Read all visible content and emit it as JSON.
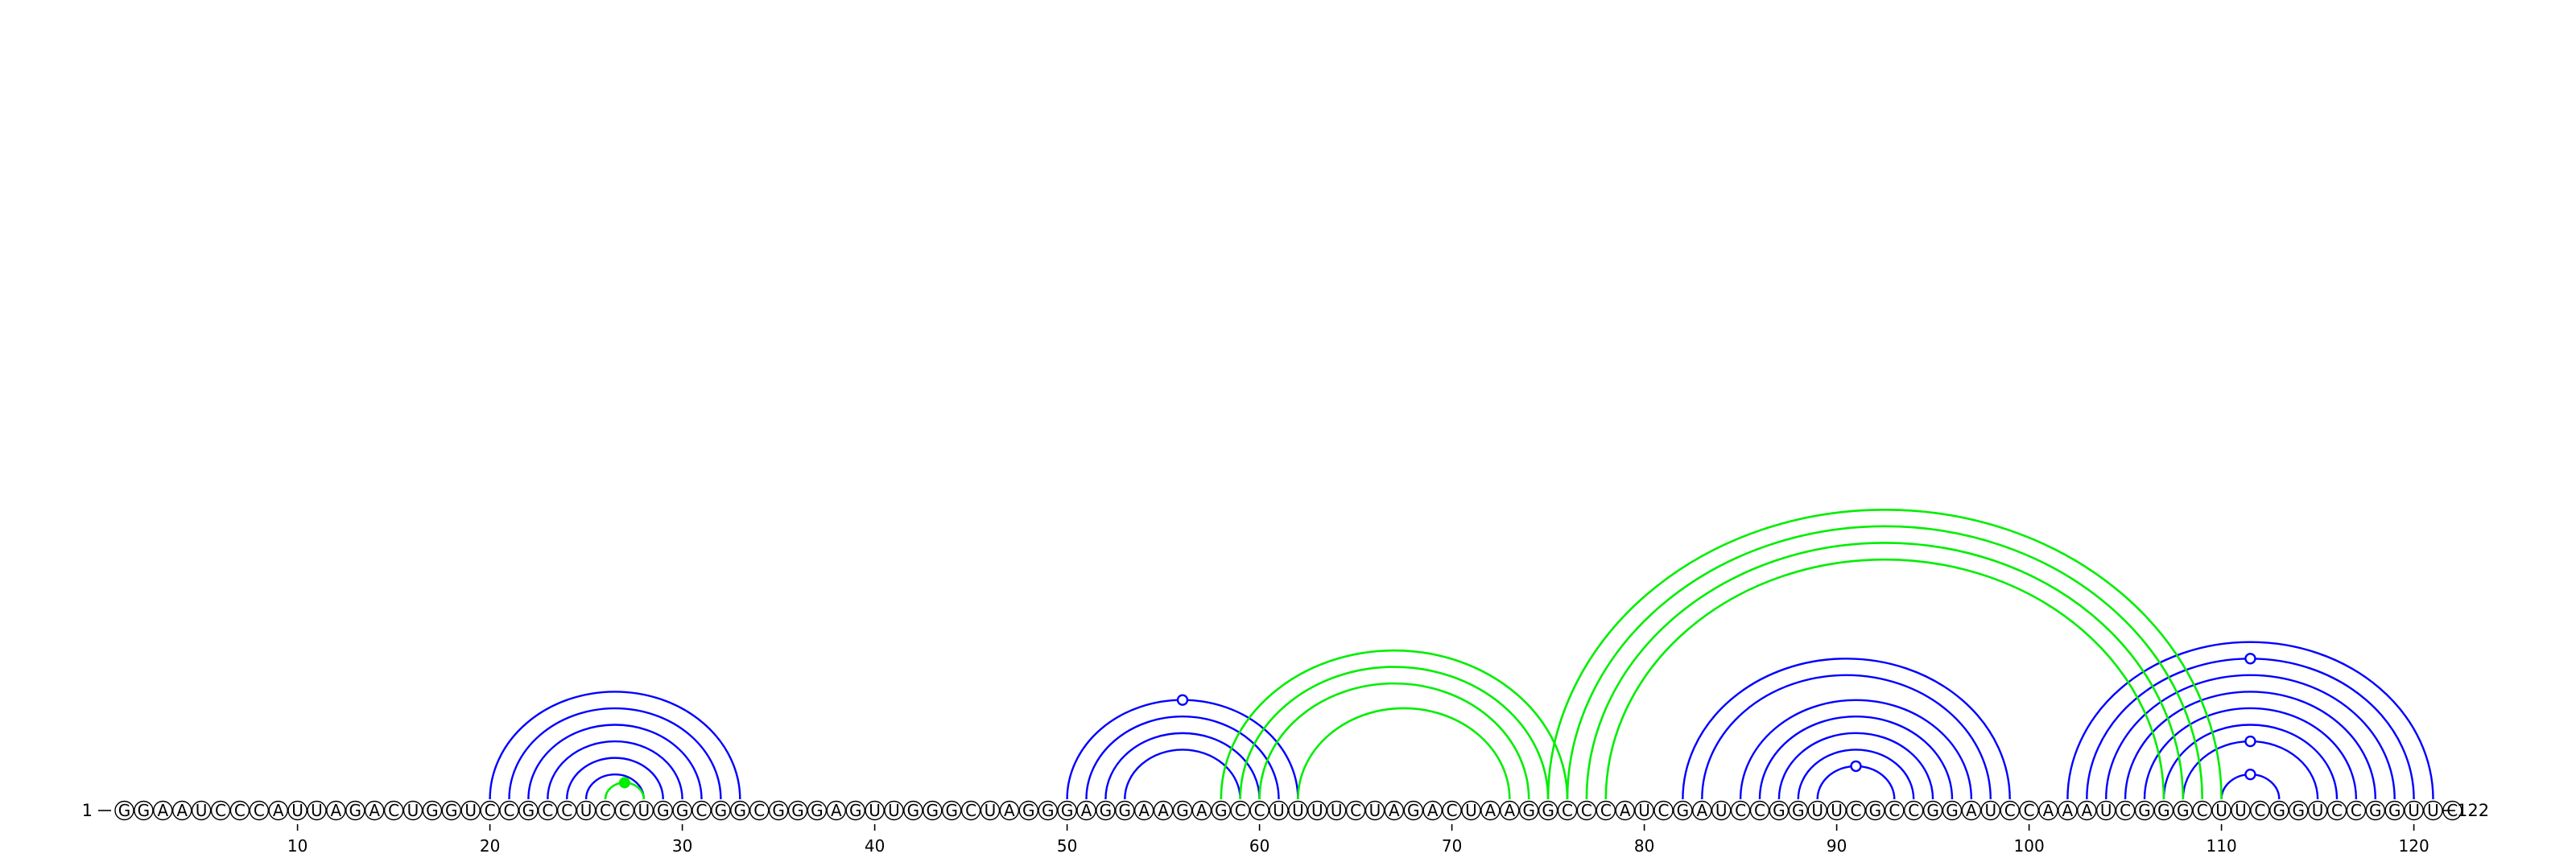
{
  "sequence": "GGAAUCCCAUUAGACUGGUCCGCCUCCUGGCGGCGGGAGUUGGGCUAGGGAGGAAGAGCCUUUUCUAGACUAAGGCCCAUCGAUCCGGUUCGCCGGAUCCAAAUCGGGCUUCGGUCCGGUUC",
  "start_label": "1",
  "end_label": "122",
  "ticks": [
    10,
    20,
    30,
    40,
    50,
    60,
    70,
    80,
    90,
    100,
    110,
    120
  ],
  "colors": {
    "blue": "#0000ff",
    "green": "#00ee00"
  },
  "blue_arcs": [
    [
      20,
      33
    ],
    [
      21,
      32
    ],
    [
      22,
      31
    ],
    [
      23,
      30
    ],
    [
      24,
      29
    ],
    [
      25,
      28
    ],
    [
      50,
      62
    ],
    [
      51,
      61
    ],
    [
      52,
      60
    ],
    [
      53,
      59
    ],
    [
      82,
      99
    ],
    [
      83,
      98
    ],
    [
      85,
      97
    ],
    [
      86,
      96
    ],
    [
      87,
      95
    ],
    [
      88,
      94
    ],
    [
      89,
      93
    ],
    [
      102,
      121
    ],
    [
      103,
      120
    ],
    [
      104,
      119
    ],
    [
      105,
      118
    ],
    [
      106,
      117
    ],
    [
      107,
      116
    ],
    [
      108,
      115
    ],
    [
      110,
      113
    ]
  ],
  "green_arcs": [
    [
      26,
      28
    ],
    [
      58,
      76
    ],
    [
      59,
      75
    ],
    [
      60,
      74
    ],
    [
      62,
      73
    ],
    [
      75,
      110
    ],
    [
      76,
      109
    ],
    [
      77,
      108
    ],
    [
      78,
      107
    ]
  ],
  "markers": [
    {
      "type": "filled",
      "i": 26,
      "j": 28
    },
    {
      "type": "open",
      "i": 50,
      "j": 62
    },
    {
      "type": "open",
      "i": 89,
      "j": 93
    },
    {
      "type": "open",
      "i": 103,
      "j": 120
    },
    {
      "type": "open",
      "i": 108,
      "j": 115
    },
    {
      "type": "open",
      "i": 110,
      "j": 113
    }
  ]
}
